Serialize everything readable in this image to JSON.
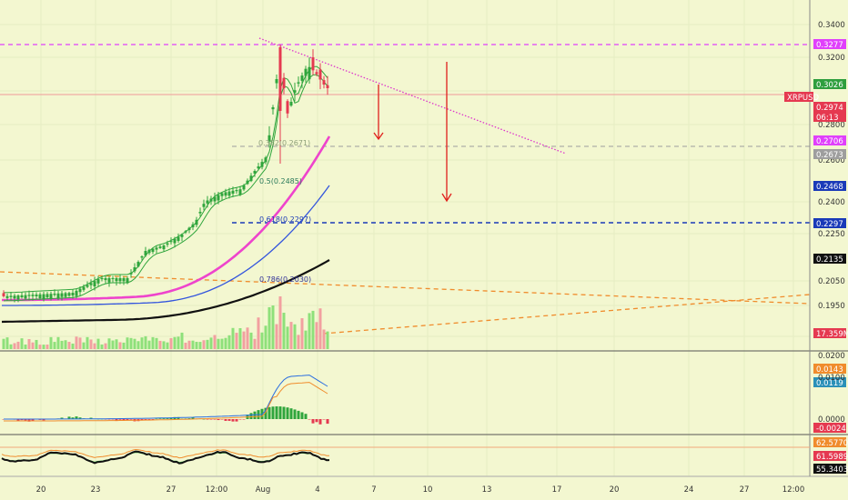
{
  "chart_data": {
    "type": "candlestick",
    "symbol": "XRPUSD",
    "price_axis": {
      "ticks": [
        "0.3400",
        "0.3200",
        "0.3000",
        "0.2800",
        "0.2600",
        "0.2400",
        "0.2250",
        "0.2050",
        "0.1950"
      ],
      "badges": [
        {
          "label": "0.3277",
          "color": "#e040fb"
        },
        {
          "label": "0.3026",
          "color": "#2e9e3e"
        },
        {
          "label": "XRPUSD",
          "color": "#e53950"
        },
        {
          "label": "0.2974",
          "color": "#e53950"
        },
        {
          "label": "06:13",
          "color": "#e53950"
        },
        {
          "label": "0.2706",
          "color": "#e040fb"
        },
        {
          "label": "0.2673",
          "color": "#9e9e9e"
        },
        {
          "label": "0.2468",
          "color": "#1a3ab8"
        },
        {
          "label": "0.2297",
          "color": "#1a3ab8"
        },
        {
          "label": "0.2135",
          "color": "#111111"
        },
        {
          "label": "17.359M",
          "color": "#e53950"
        }
      ],
      "scale": {
        "price_min": 0.195,
        "price_max": 0.34
      }
    },
    "time_axis": [
      "20",
      "23",
      "27",
      "12:00",
      "Aug",
      "4",
      "7",
      "10",
      "13",
      "17",
      "20",
      "24",
      "27",
      "12:00"
    ],
    "fib_labels": [
      "0.5(0.2485)",
      "0.618(0.2297)",
      "0.786(0.2030)",
      "0.382(0.2671)"
    ],
    "moving_averages": [
      {
        "color": "#ee44cc",
        "role": "MA fast"
      },
      {
        "color": "#3355dd",
        "role": "MA mid"
      },
      {
        "color": "#111111",
        "role": "MA slow"
      }
    ],
    "levels": [
      {
        "price": 0.3277,
        "color": "#e040fb",
        "style": "dashed"
      },
      {
        "price": 0.2974,
        "color": "#ef9a9a",
        "style": "solid"
      },
      {
        "price": 0.2706,
        "color": "#9e9e9e",
        "style": "dashed"
      },
      {
        "price": 0.2297,
        "color": "#1a3ab8",
        "style": "dashed"
      }
    ],
    "macd_axis": {
      "ticks": [
        "0.0200",
        "0.0100",
        "0.0000"
      ],
      "badges": [
        {
          "label": "0.0143",
          "color": "#f08c2c"
        },
        {
          "label": "0.0119",
          "color": "#2a90b8"
        },
        {
          "label": "-0.0024",
          "color": "#e53950"
        }
      ]
    },
    "rsi_axis": {
      "badges": [
        {
          "label": "62.5770",
          "color": "#f08c2c"
        },
        {
          "label": "61.5989",
          "color": "#e53950"
        },
        {
          "label": "55.3403",
          "color": "#111111"
        }
      ]
    }
  }
}
